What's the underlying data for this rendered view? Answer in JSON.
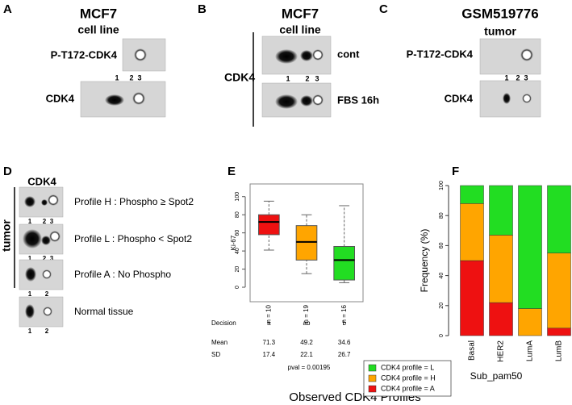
{
  "panels": {
    "A": {
      "letter": "A",
      "title": "MCF7",
      "subtitle": "cell line",
      "rows": [
        "P-T172-CDK4",
        "CDK4"
      ],
      "lanes": [
        "1",
        "2",
        "3"
      ]
    },
    "B": {
      "letter": "B",
      "title": "MCF7",
      "subtitle": "cell line",
      "label": "CDK4",
      "rows": [
        "cont",
        "FBS 16h"
      ],
      "lanes": [
        "1",
        "2",
        "3"
      ]
    },
    "C": {
      "letter": "C",
      "title": "GSM519776",
      "subtitle": "tumor",
      "rows": [
        "P-T172-CDK4",
        "CDK4"
      ],
      "lanes": [
        "1",
        "2",
        "3"
      ]
    },
    "D": {
      "letter": "D",
      "title": "CDK4",
      "group": "tumor",
      "rows": [
        "Profile H : Phospho ≥ Spot2",
        "Profile L : Phospho < Spot2",
        "Profile A : No Phospho",
        "Normal tissue"
      ],
      "lanes": [
        [
          "1",
          "2",
          "3"
        ],
        [
          "1",
          "2",
          "3"
        ],
        [
          "1",
          "2"
        ],
        [
          "1",
          "2"
        ]
      ]
    }
  },
  "chart_data": [
    {
      "type": "box",
      "letter": "E",
      "ylabel": "Ki-67",
      "ylim": [
        -16,
        114
      ],
      "yticks": [
        0,
        20,
        40,
        60,
        80,
        100
      ],
      "categories": [
        "n = 10",
        "n = 19",
        "n = 16"
      ],
      "colors": [
        "#ee1111",
        "#ffa500",
        "#22dd22"
      ],
      "boxes": [
        {
          "low": 41,
          "q1": 58,
          "median": 72,
          "q3": 80,
          "high": 95
        },
        {
          "low": 15,
          "q1": 30,
          "median": 50,
          "q3": 68,
          "high": 80
        },
        {
          "low": 5,
          "q1": 8,
          "median": 30,
          "q3": 45,
          "high": 90
        }
      ],
      "table": {
        "row_labels": [
          "Decision",
          "Mean",
          "SD"
        ],
        "rows": [
          [
            "a",
            "ab",
            "b"
          ],
          [
            71.3,
            49.2,
            34.6
          ],
          [
            17.4,
            22.1,
            26.7
          ]
        ]
      },
      "note": "pval = 0.00195"
    },
    {
      "type": "stacked_bar",
      "letter": "F",
      "ylabel": "Frequency (%)",
      "xlabel": "Sub_pam50",
      "categories": [
        "Basal",
        "HER2",
        "LumA",
        "LumB"
      ],
      "ylim": [
        0,
        100
      ],
      "yticks": [
        0,
        20,
        40,
        60,
        80,
        100
      ],
      "series": [
        {
          "name": "CDK4 profile = L",
          "color": "#22dd22",
          "values": [
            12,
            33,
            82,
            45
          ]
        },
        {
          "name": "CDK4 profile = H",
          "color": "#ffa500",
          "values": [
            38,
            45,
            18,
            50
          ]
        },
        {
          "name": "CDK4 profile = A",
          "color": "#ee1111",
          "values": [
            50,
            22,
            0,
            5
          ]
        }
      ]
    }
  ],
  "caption": "Observed CDK4 Profiles"
}
